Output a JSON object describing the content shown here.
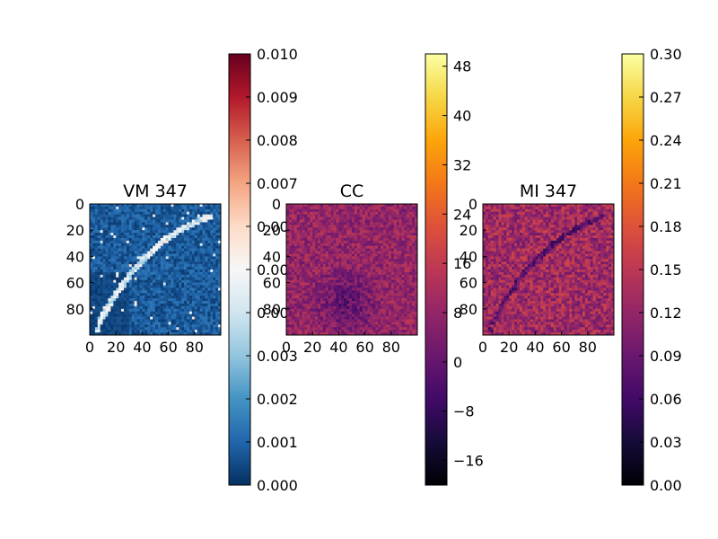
{
  "chart_data": [
    {
      "type": "heatmap",
      "title": "VM 347",
      "colormap": "RdBu_r",
      "rows": 100,
      "cols": 100,
      "xticks": [
        "0",
        "20",
        "40",
        "60",
        "80"
      ],
      "yticks": [
        "0",
        "20",
        "40",
        "60",
        "80"
      ],
      "colorbar": {
        "min": 0.0,
        "max": 0.01,
        "ticks": [
          "0.000",
          "0.001",
          "0.002",
          "0.003",
          "0.004",
          "0.005",
          "0.006",
          "0.007",
          "0.008",
          "0.009",
          "0.010"
        ]
      },
      "pattern": "mostly near 0 with a bright diagonal arc"
    },
    {
      "type": "heatmap",
      "title": "CC",
      "colormap": "inferno",
      "rows": 100,
      "cols": 100,
      "xticks": [
        "0",
        "20",
        "40",
        "60",
        "80"
      ],
      "yticks": [
        "0",
        "20",
        "40",
        "60",
        "80"
      ],
      "colorbar": {
        "min": -20,
        "max": 50,
        "ticks": [
          "−16",
          "−8",
          "0",
          "8",
          "16",
          "24",
          "32",
          "40",
          "48"
        ]
      },
      "pattern": "noisy around ~8 with a darker region near center"
    },
    {
      "type": "heatmap",
      "title": "MI 347",
      "colormap": "inferno",
      "rows": 100,
      "cols": 100,
      "xticks": [
        "0",
        "20",
        "40",
        "60",
        "80"
      ],
      "yticks": [
        "0",
        "20",
        "40",
        "60",
        "80"
      ],
      "colorbar": {
        "min": 0.0,
        "max": 0.3,
        "ticks": [
          "0.00",
          "0.03",
          "0.06",
          "0.09",
          "0.12",
          "0.15",
          "0.18",
          "0.21",
          "0.24",
          "0.27",
          "0.30"
        ]
      },
      "pattern": "noisy around ~0.13 with a faint dark arc"
    }
  ]
}
